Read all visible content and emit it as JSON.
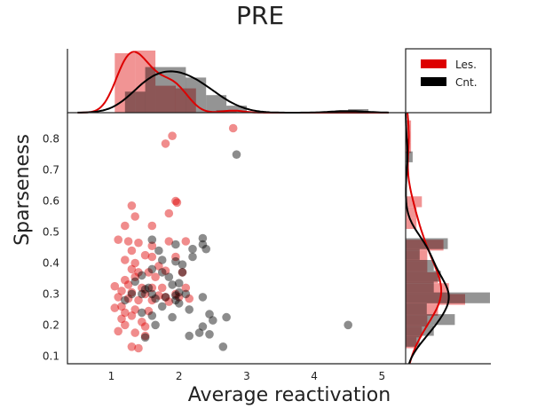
{
  "chart_data": {
    "type": "scatter",
    "title": "PRE",
    "xlabel": "Average reactivation",
    "ylabel": "Sparseness",
    "xlim": [
      0.35,
      5.35
    ],
    "ylim": [
      0.075,
      0.885
    ],
    "xticks": [
      1,
      2,
      3,
      4,
      5
    ],
    "yticks": [
      0.1,
      0.2,
      0.3,
      0.4,
      0.5,
      0.6,
      0.7,
      0.8
    ],
    "grid": false,
    "legend_position": "top-right",
    "series": [
      {
        "name": "Les.",
        "color": "#dd0000",
        "points": [
          [
            2.8,
            0.835
          ],
          [
            1.9,
            0.81
          ],
          [
            1.8,
            0.785
          ],
          [
            1.95,
            0.6
          ],
          [
            1.97,
            0.595
          ],
          [
            1.3,
            0.585
          ],
          [
            1.35,
            0.55
          ],
          [
            1.85,
            0.56
          ],
          [
            1.6,
            0.52
          ],
          [
            1.2,
            0.52
          ],
          [
            1.1,
            0.475
          ],
          [
            1.25,
            0.47
          ],
          [
            1.4,
            0.465
          ],
          [
            1.6,
            0.455
          ],
          [
            1.85,
            0.47
          ],
          [
            2.1,
            0.47
          ],
          [
            1.3,
            0.44
          ],
          [
            1.5,
            0.425
          ],
          [
            1.6,
            0.42
          ],
          [
            1.95,
            0.42
          ],
          [
            1.2,
            0.41
          ],
          [
            1.35,
            0.4
          ],
          [
            1.7,
            0.39
          ],
          [
            1.3,
            0.38
          ],
          [
            1.4,
            0.37
          ],
          [
            1.55,
            0.37
          ],
          [
            1.8,
            0.375
          ],
          [
            2.05,
            0.37
          ],
          [
            1.35,
            0.355
          ],
          [
            1.65,
            0.355
          ],
          [
            1.2,
            0.345
          ],
          [
            1.25,
            0.33
          ],
          [
            1.05,
            0.325
          ],
          [
            1.45,
            0.32
          ],
          [
            1.6,
            0.32
          ],
          [
            1.75,
            0.32
          ],
          [
            2.1,
            0.32
          ],
          [
            1.15,
            0.31
          ],
          [
            1.3,
            0.305
          ],
          [
            1.5,
            0.3
          ],
          [
            1.7,
            0.295
          ],
          [
            1.8,
            0.29
          ],
          [
            1.95,
            0.3
          ],
          [
            2.0,
            0.29
          ],
          [
            1.1,
            0.29
          ],
          [
            1.25,
            0.285
          ],
          [
            1.4,
            0.28
          ],
          [
            1.6,
            0.28
          ],
          [
            2.15,
            0.285
          ],
          [
            1.85,
            0.275
          ],
          [
            1.15,
            0.26
          ],
          [
            1.05,
            0.255
          ],
          [
            1.35,
            0.25
          ],
          [
            1.55,
            0.245
          ],
          [
            1.2,
            0.24
          ],
          [
            1.3,
            0.23
          ],
          [
            1.15,
            0.22
          ],
          [
            1.45,
            0.21
          ],
          [
            1.2,
            0.2
          ],
          [
            1.5,
            0.195
          ],
          [
            1.1,
            0.18
          ],
          [
            1.35,
            0.175
          ],
          [
            1.5,
            0.165
          ],
          [
            1.3,
            0.13
          ],
          [
            1.4,
            0.125
          ]
        ]
      },
      {
        "name": "Cnt.",
        "color": "#000000",
        "points": [
          [
            2.85,
            0.75
          ],
          [
            2.35,
            0.48
          ],
          [
            2.35,
            0.46
          ],
          [
            1.95,
            0.46
          ],
          [
            1.6,
            0.475
          ],
          [
            2.2,
            0.445
          ],
          [
            1.7,
            0.44
          ],
          [
            2.4,
            0.445
          ],
          [
            2.2,
            0.42
          ],
          [
            1.75,
            0.41
          ],
          [
            1.95,
            0.405
          ],
          [
            2.05,
            0.395
          ],
          [
            1.6,
            0.38
          ],
          [
            2.05,
            0.37
          ],
          [
            1.75,
            0.37
          ],
          [
            1.45,
            0.36
          ],
          [
            1.85,
            0.355
          ],
          [
            1.35,
            0.34
          ],
          [
            2.0,
            0.335
          ],
          [
            1.9,
            0.33
          ],
          [
            1.55,
            0.32
          ],
          [
            1.5,
            0.315
          ],
          [
            2.0,
            0.305
          ],
          [
            2.1,
            0.3
          ],
          [
            1.6,
            0.3
          ],
          [
            1.45,
            0.3
          ],
          [
            1.3,
            0.3
          ],
          [
            1.95,
            0.295
          ],
          [
            1.8,
            0.29
          ],
          [
            2.35,
            0.29
          ],
          [
            1.65,
            0.285
          ],
          [
            1.2,
            0.28
          ],
          [
            1.95,
            0.28
          ],
          [
            2.0,
            0.27
          ],
          [
            1.75,
            0.26
          ],
          [
            2.15,
            0.25
          ],
          [
            2.45,
            0.235
          ],
          [
            1.45,
            0.24
          ],
          [
            1.6,
            0.23
          ],
          [
            1.9,
            0.225
          ],
          [
            2.7,
            0.225
          ],
          [
            2.5,
            0.215
          ],
          [
            2.35,
            0.195
          ],
          [
            1.65,
            0.2
          ],
          [
            4.5,
            0.2
          ],
          [
            2.3,
            0.175
          ],
          [
            2.45,
            0.17
          ],
          [
            2.15,
            0.165
          ],
          [
            1.5,
            0.16
          ],
          [
            2.65,
            0.13
          ]
        ]
      }
    ]
  }
}
